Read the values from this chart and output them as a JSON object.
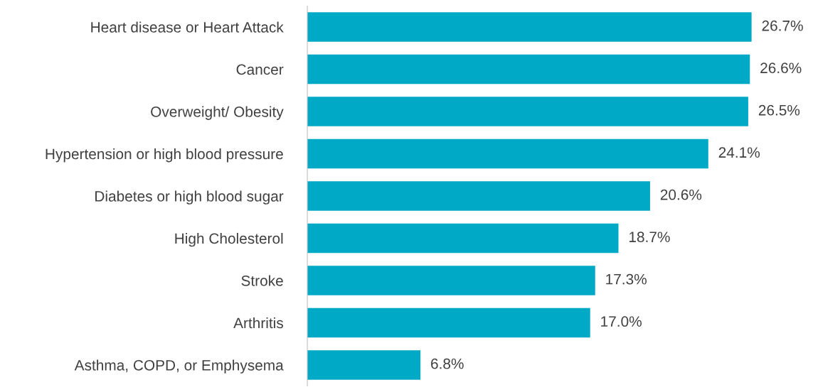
{
  "chart_data": {
    "type": "bar",
    "orientation": "horizontal",
    "categories": [
      "Heart disease or Heart Attack",
      "Cancer",
      "Overweight/ Obesity",
      "Hypertension or high blood pressure",
      "Diabetes or high blood sugar",
      "High Cholesterol",
      "Stroke",
      "Arthritis",
      "Asthma, COPD, or Emphysema"
    ],
    "values": [
      26.7,
      26.6,
      26.5,
      24.1,
      20.6,
      18.7,
      17.3,
      17.0,
      6.8
    ],
    "value_labels": [
      "26.7%",
      "26.6%",
      "26.5%",
      "24.1%",
      "20.6%",
      "18.7%",
      "17.3%",
      "17.0%",
      "6.8%"
    ],
    "color": "#00a9c6",
    "grid": false,
    "legend": false
  }
}
